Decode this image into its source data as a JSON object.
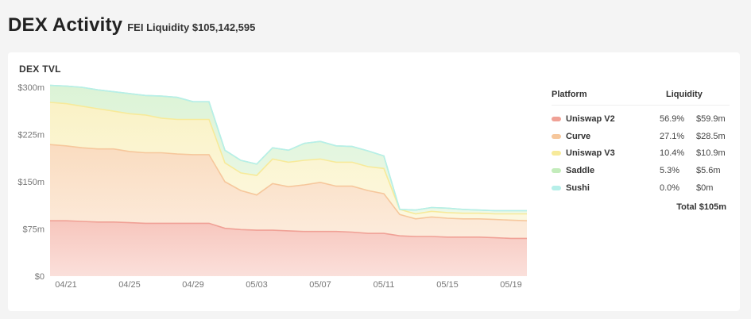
{
  "header": {
    "title": "DEX Activity",
    "subtitle": "FEI Liquidity $105,142,595"
  },
  "card": {
    "title": "DEX TVL"
  },
  "legend": {
    "platform_header": "Platform",
    "liquidity_header": "Liquidity",
    "rows": [
      {
        "name": "Uniswap V2",
        "pct": "56.9%",
        "value": "$59.9m",
        "color": "#f0a196"
      },
      {
        "name": "Curve",
        "pct": "27.1%",
        "value": "$28.5m",
        "color": "#f6c79c"
      },
      {
        "name": "Uniswap V3",
        "pct": "10.4%",
        "value": "$10.9m",
        "color": "#f7ea9a"
      },
      {
        "name": "Saddle",
        "pct": "5.3%",
        "value": "$5.6m",
        "color": "#c3ecbb"
      },
      {
        "name": "Sushi",
        "pct": "0.0%",
        "value": "$0m",
        "color": "#b6efe9"
      }
    ],
    "total": "Total $105m"
  },
  "chart_data": {
    "type": "area",
    "stacked": true,
    "title": "DEX TVL",
    "y_ticks": [
      "$0",
      "$75m",
      "$150m",
      "$225m",
      "$300m"
    ],
    "ylim": [
      0,
      300
    ],
    "x_ticks": [
      "04/21",
      "04/25",
      "04/29",
      "05/03",
      "05/07",
      "05/11",
      "05/15",
      "05/19"
    ],
    "x_tick_days": [
      1,
      5,
      9,
      13,
      17,
      21,
      25,
      29
    ],
    "x": [
      0,
      1,
      2,
      3,
      4,
      5,
      6,
      7,
      8,
      9,
      10,
      11,
      12,
      13,
      14,
      15,
      16,
      17,
      18,
      19,
      20,
      21,
      22,
      23,
      24,
      25,
      26,
      27,
      28,
      29,
      30
    ],
    "series": [
      {
        "name": "Uniswap V2",
        "color": "#f0a196",
        "fill": "#f7c6bd",
        "values": [
          88,
          88,
          87,
          86,
          86,
          85,
          84,
          84,
          84,
          84,
          84,
          76,
          74,
          73,
          73,
          72,
          71,
          71,
          71,
          70,
          68,
          68,
          64,
          63,
          63,
          62,
          62,
          62,
          61,
          60,
          60
        ]
      },
      {
        "name": "Curve",
        "color": "#f6c79c",
        "fill": "#fadcc0",
        "values": [
          121,
          119,
          117,
          116,
          116,
          113,
          112,
          112,
          110,
          109,
          109,
          74,
          62,
          56,
          74,
          70,
          74,
          78,
          72,
          73,
          68,
          63,
          34,
          28,
          31,
          30,
          29,
          29,
          29,
          29,
          28
        ]
      },
      {
        "name": "Uniswap V3",
        "color": "#f7ea9a",
        "fill": "#faf2c6",
        "values": [
          67,
          67,
          66,
          64,
          60,
          60,
          60,
          55,
          55,
          56,
          56,
          30,
          28,
          31,
          39,
          39,
          39,
          37,
          38,
          38,
          38,
          40,
          8,
          8,
          9,
          9,
          9,
          9,
          9,
          10,
          11
        ]
      },
      {
        "name": "Saddle",
        "color": "#c3ecbb",
        "fill": "#dcf3d6",
        "values": [
          27,
          28,
          30,
          30,
          31,
          32,
          31,
          35,
          35,
          28,
          28,
          20,
          20,
          18,
          18,
          19,
          27,
          28,
          26,
          25,
          25,
          20,
          0,
          6,
          6,
          7,
          6,
          5,
          5,
          5,
          5
        ]
      },
      {
        "name": "Sushi",
        "color": "#b6efe9",
        "fill": "#d6f6f2",
        "values": [
          0,
          0,
          0,
          0,
          0,
          0,
          0,
          0,
          0,
          0,
          0,
          0,
          0,
          0,
          0,
          0,
          0,
          0,
          0,
          0,
          0,
          0,
          0,
          0,
          0,
          0,
          0,
          0,
          0,
          0,
          0
        ]
      }
    ]
  }
}
